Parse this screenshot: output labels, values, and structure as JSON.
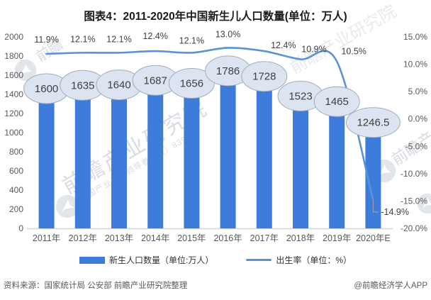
{
  "header": {
    "title": "图表4：2011-2020年中国新生儿人口数量(单位：万人)"
  },
  "chart_data": {
    "type": "bar",
    "title": "图表4：2011-2020年中国新生儿人口数量(单位：万人)",
    "categories": [
      "2011年",
      "2012年",
      "2013年",
      "2014年",
      "2015年",
      "2016年",
      "2017年",
      "2018年",
      "2019年",
      "2020年E"
    ],
    "series": [
      {
        "name": "新生人口数量（单位:万人）",
        "type": "bar",
        "axis": "left",
        "values": [
          1600,
          1635,
          1640,
          1687,
          1656,
          1786,
          1728,
          1523,
          1465,
          1246.5
        ],
        "labels": [
          "1600",
          "1635",
          "1640",
          "1687",
          "1656",
          "1786",
          "1728",
          "1523",
          "1465",
          "1246.5"
        ]
      },
      {
        "name": "出生率（单位：%）",
        "type": "line",
        "axis": "right",
        "values": [
          11.9,
          12.1,
          12.1,
          12.4,
          12.1,
          13.0,
          12.4,
          10.9,
          10.5,
          -14.9
        ],
        "labels": [
          "11.9%",
          "12.1%",
          "12.1%",
          "12.4%",
          "12.1%",
          "13.0%",
          "12.4%",
          "10.9%",
          "10.5%",
          "-14.9%"
        ]
      }
    ],
    "left_axis": {
      "min": 0,
      "max": 2000,
      "step": 200,
      "ticks": [
        "2000",
        "1800",
        "1600",
        "1400",
        "1200",
        "1000",
        "800",
        "600",
        "400",
        "200",
        "0"
      ]
    },
    "right_axis": {
      "min": -20,
      "max": 15,
      "step": 5,
      "ticks": [
        "15.0%",
        "10.0%",
        "5.0%",
        "0.0%",
        "-5.0%",
        "-10.0%",
        "-15.0%",
        "-20.0%"
      ]
    },
    "legend_position": "bottom",
    "grid": false
  },
  "footer": {
    "source": "资料来源：国家统计局 公安部 前瞻产业研究院整理",
    "credit": "@前瞻经济学人APP"
  },
  "watermark": {
    "brand": "前瞻产业研究院",
    "tagline": "中国产业咨询领导者（股）839599",
    "short": "前瞻",
    "logo_icon": "qianzhan-plane-logo-icon"
  },
  "colors": {
    "bar": "#3E7CDB",
    "line": "#5B91D8",
    "bubble_fill": "#DCE4F2",
    "bubble_border": "#A4ACBB",
    "value_text": "#3F3F3F",
    "rate_text": "#3F3F3F",
    "axis_text": "#595959",
    "axis_line": "#D6D6D6",
    "leader_line": "#A6A6A6",
    "title_text": "#1A1A1A",
    "footer_text": "#595959"
  }
}
